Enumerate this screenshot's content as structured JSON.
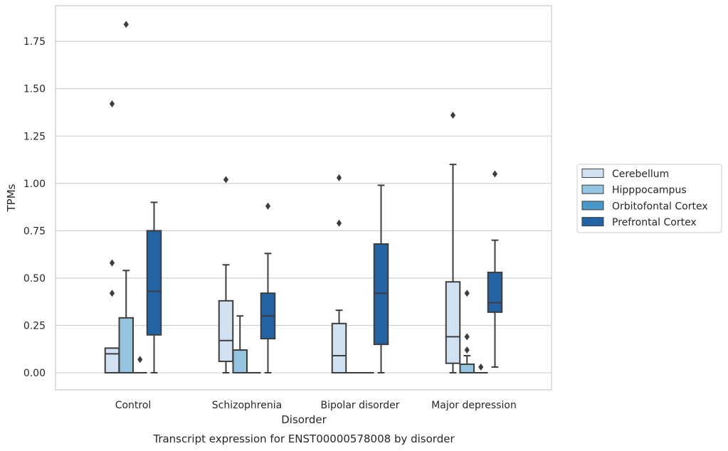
{
  "chart_data": {
    "type": "boxplot",
    "title": "Transcript expression for ENST00000578008 by disorder",
    "xlabel": "Disorder",
    "ylabel": "TPMs",
    "ylim": [
      -0.09,
      1.9
    ],
    "yticks": [
      "0.00",
      "0.25",
      "0.50",
      "0.75",
      "1.00",
      "1.25",
      "1.50",
      "1.75"
    ],
    "grid": true,
    "legend_position": "right",
    "categories": [
      "Control",
      "Schizophrenia",
      "Bipolar disorder",
      "Major depression"
    ],
    "series": [
      {
        "name": "Cerebellum",
        "color": "#d0e1f2",
        "boxes": [
          {
            "min": 0.0,
            "q1": 0.0,
            "median": 0.1,
            "q3": 0.13,
            "max": 0.13,
            "outliers": [
              0.42,
              0.58,
              1.42
            ]
          },
          {
            "min": 0.0,
            "q1": 0.06,
            "median": 0.17,
            "q3": 0.38,
            "max": 0.57,
            "outliers": [
              1.02
            ]
          },
          {
            "min": 0.0,
            "q1": 0.0,
            "median": 0.09,
            "q3": 0.26,
            "max": 0.33,
            "outliers": [
              0.79,
              1.03
            ]
          },
          {
            "min": 0.0,
            "q1": 0.05,
            "median": 0.19,
            "q3": 0.48,
            "max": 1.1,
            "outliers": [
              1.36
            ]
          }
        ]
      },
      {
        "name": "Hipppocampus",
        "color": "#94c4df",
        "boxes": [
          {
            "min": 0.0,
            "q1": 0.0,
            "median": 0.0,
            "q3": 0.29,
            "max": 0.54,
            "outliers": [
              1.84
            ]
          },
          {
            "min": 0.0,
            "q1": 0.0,
            "median": 0.0,
            "q3": 0.12,
            "max": 0.3,
            "outliers": []
          },
          {
            "min": 0.0,
            "q1": 0.0,
            "median": 0.0,
            "q3": 0.0,
            "max": 0.0,
            "outliers": []
          },
          {
            "min": 0.0,
            "q1": 0.0,
            "median": 0.0,
            "q3": 0.045,
            "max": 0.09,
            "outliers": [
              0.12,
              0.19,
              0.42
            ]
          }
        ]
      },
      {
        "name": "Orbitofontal Cortex",
        "color": "#4a98c9",
        "boxes": [
          {
            "min": 0.0,
            "q1": 0.0,
            "median": 0.0,
            "q3": 0.0,
            "max": 0.0,
            "outliers": [
              0.07
            ]
          },
          {
            "min": 0.0,
            "q1": 0.0,
            "median": 0.0,
            "q3": 0.0,
            "max": 0.0,
            "outliers": []
          },
          {
            "min": 0.0,
            "q1": 0.0,
            "median": 0.0,
            "q3": 0.0,
            "max": 0.0,
            "outliers": []
          },
          {
            "min": 0.0,
            "q1": 0.0,
            "median": 0.0,
            "q3": 0.0,
            "max": 0.0,
            "outliers": [
              0.03
            ]
          }
        ]
      },
      {
        "name": "Prefrontal Cortex",
        "color": "#2263a6",
        "boxes": [
          {
            "min": 0.0,
            "q1": 0.2,
            "median": 0.43,
            "q3": 0.75,
            "max": 0.9,
            "outliers": []
          },
          {
            "min": 0.0,
            "q1": 0.18,
            "median": 0.3,
            "q3": 0.42,
            "max": 0.63,
            "outliers": [
              0.88
            ]
          },
          {
            "min": 0.0,
            "q1": 0.15,
            "median": 0.42,
            "q3": 0.68,
            "max": 0.99,
            "outliers": []
          },
          {
            "min": 0.03,
            "q1": 0.32,
            "median": 0.37,
            "q3": 0.53,
            "max": 0.7,
            "outliers": [
              1.05
            ]
          }
        ]
      }
    ]
  }
}
